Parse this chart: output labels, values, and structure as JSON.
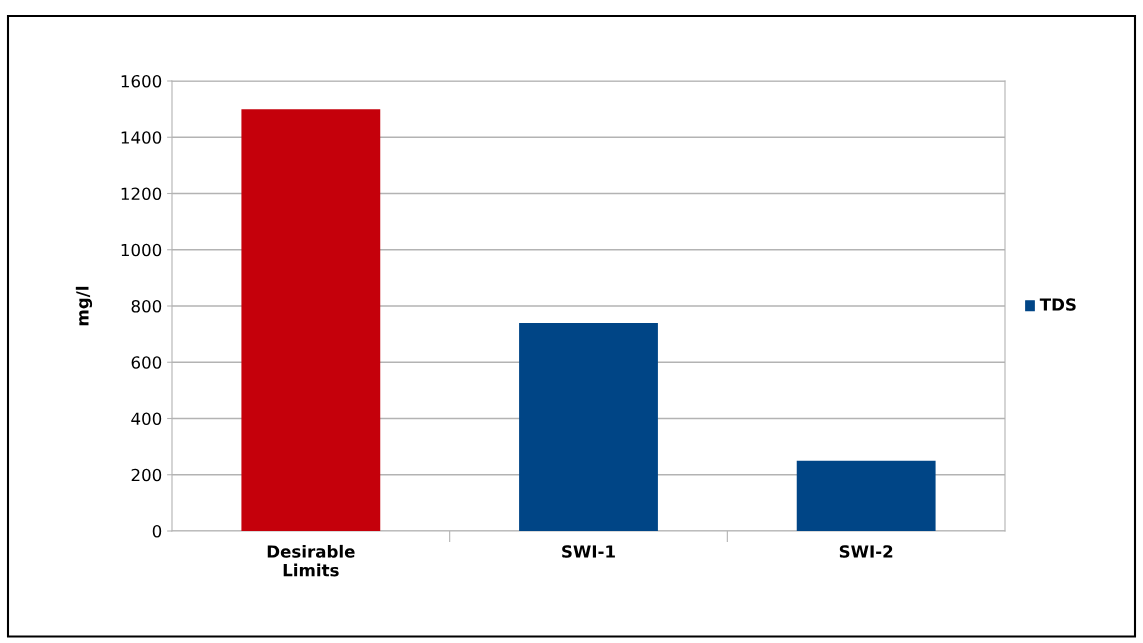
{
  "chart_data": {
    "type": "bar",
    "ylabel": "mg/l",
    "categories": [
      "Desirable\nLimits",
      "SWI-1",
      "SWI-2"
    ],
    "series": [
      {
        "name": "TDS",
        "color": "#004586",
        "colors": [
          "#c5000b",
          "#004586",
          "#004586"
        ],
        "values": [
          1500,
          740,
          250
        ]
      }
    ],
    "ylim": [
      0,
      1600
    ],
    "yticks": [
      0,
      200,
      400,
      600,
      800,
      1000,
      1200,
      1400,
      1600
    ],
    "grid": "y",
    "legend": "right"
  }
}
